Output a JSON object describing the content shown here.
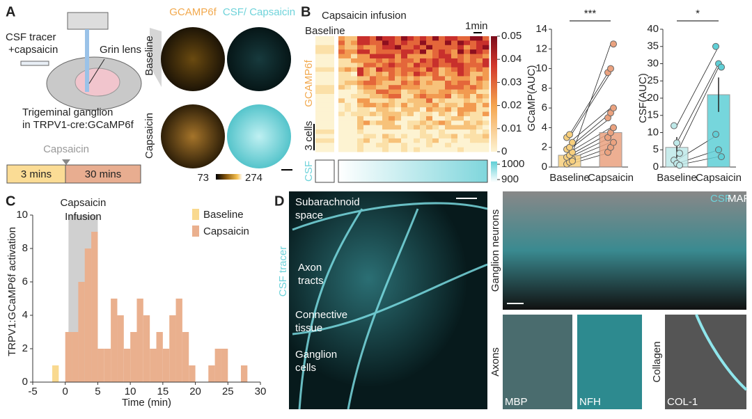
{
  "panel_a": {
    "label": "A",
    "tracer": [
      "CSF tracer",
      "+capsaicin"
    ],
    "lens": "Grin lens",
    "ganglion": [
      "Trigeminal ganglion",
      "in TRPV1-cre:GCaMP6f"
    ],
    "timeline": {
      "event": "Capsaicin",
      "segments": [
        "3 mins",
        "30 mins"
      ]
    },
    "columns": [
      "GCAMP6f",
      "CSF/ Capsaicin"
    ],
    "rows": [
      "Baseline",
      "Capsaicin"
    ],
    "colorbar": [
      73,
      274
    ]
  },
  "panel_b": {
    "label": "B",
    "title": "Capsaicin infusion",
    "baseline": "Baseline",
    "scale": "1min",
    "gcamp": "GCAMP6f",
    "cells": "3 cells",
    "csf": "CSF",
    "heatmap_colorbar": [
      0.05,
      0.04,
      0.03,
      0.02,
      0.01,
      0
    ],
    "csf_colorbar": [
      1000,
      900
    ],
    "charts": [
      {
        "type": "bar",
        "significance": "***",
        "y_label": "GCaMP(AUC)",
        "categories": [
          "Baseline",
          "Capsaicin"
        ],
        "values": [
          1.2,
          3.5
        ],
        "errors": [
          0.4,
          0.6
        ],
        "colors": [
          "#f7cf7d",
          "#eba27f"
        ],
        "points": [
          [
            0.3,
            0.5,
            0.8,
            1.0,
            1.2,
            1.5,
            1.8,
            2.0,
            2.5,
            3.0,
            3.3,
            0.6
          ],
          [
            1.5,
            2.0,
            2.5,
            3.0,
            3.5,
            4.0,
            5.0,
            5.5,
            6.0,
            9.6,
            10,
            12.5
          ]
        ],
        "ylim": [
          0,
          14
        ],
        "yticks": [
          0,
          2,
          4,
          6,
          8,
          10,
          12,
          14
        ]
      },
      {
        "type": "bar",
        "significance": "*",
        "y_label": "CSF(AUC)",
        "categories": [
          "Baseline",
          "Capsaicin"
        ],
        "values": [
          5.7,
          21
        ],
        "errors": [
          3,
          5
        ],
        "colors": [
          "#bfe9e9",
          "#5fcfd6"
        ],
        "points": [
          [
            12,
            7,
            4,
            2,
            1,
            0.5
          ],
          [
            35,
            30,
            29,
            9.5,
            5,
            3
          ]
        ],
        "ylim": [
          0,
          40
        ],
        "yticks": [
          0,
          5,
          10,
          15,
          20,
          25,
          30,
          35,
          40
        ]
      }
    ]
  },
  "panel_c": {
    "label": "C",
    "chart_data": {
      "type": "histogram",
      "y_label": "TRPV1:GCaMP6f activation",
      "x_label": "Time (min)",
      "annotation": [
        "Capsaicin",
        "Infusion"
      ],
      "shade": [
        0.5,
        5
      ],
      "series": [
        {
          "name": "Baseline",
          "color": "#f9d98f",
          "bins": [
            -2,
            -1
          ],
          "values": [
            1
          ]
        },
        {
          "name": "Capsaicin",
          "color": "#eab08e",
          "bins": [
            0,
            1,
            2,
            3,
            4,
            5,
            6,
            7,
            8,
            9,
            10,
            11,
            12,
            13,
            14,
            15,
            16,
            17,
            18,
            19,
            20,
            21,
            22,
            23,
            24,
            25,
            26,
            27,
            28,
            29
          ],
          "values": [
            3,
            3,
            6,
            8,
            9,
            2,
            2,
            5,
            4,
            2,
            3,
            5,
            4,
            2,
            3,
            2,
            4,
            5,
            3,
            1,
            0,
            0,
            1,
            2,
            2,
            0,
            0,
            1,
            0
          ]
        }
      ],
      "xlim": [
        -5,
        30
      ],
      "xticks": [
        -5,
        0,
        5,
        10,
        15,
        20,
        25,
        30
      ],
      "ylim": [
        0,
        10
      ],
      "yticks": [
        0,
        2,
        4,
        6,
        8,
        10
      ]
    }
  },
  "panel_d": {
    "label": "D",
    "annotations": [
      [
        "Subarachnoid",
        "space"
      ],
      [
        "Axon",
        "tracts"
      ],
      [
        "Connective",
        "tissue"
      ],
      [
        "Ganglion",
        "cells"
      ]
    ],
    "tracer": "CSF tracer",
    "neurons": "Ganglion neurons",
    "legend": [
      "CSF",
      "MAP"
    ],
    "axons": "Axons",
    "collagen": "Collagen",
    "stains": [
      "MBP",
      "NFH",
      "COL-1"
    ]
  }
}
